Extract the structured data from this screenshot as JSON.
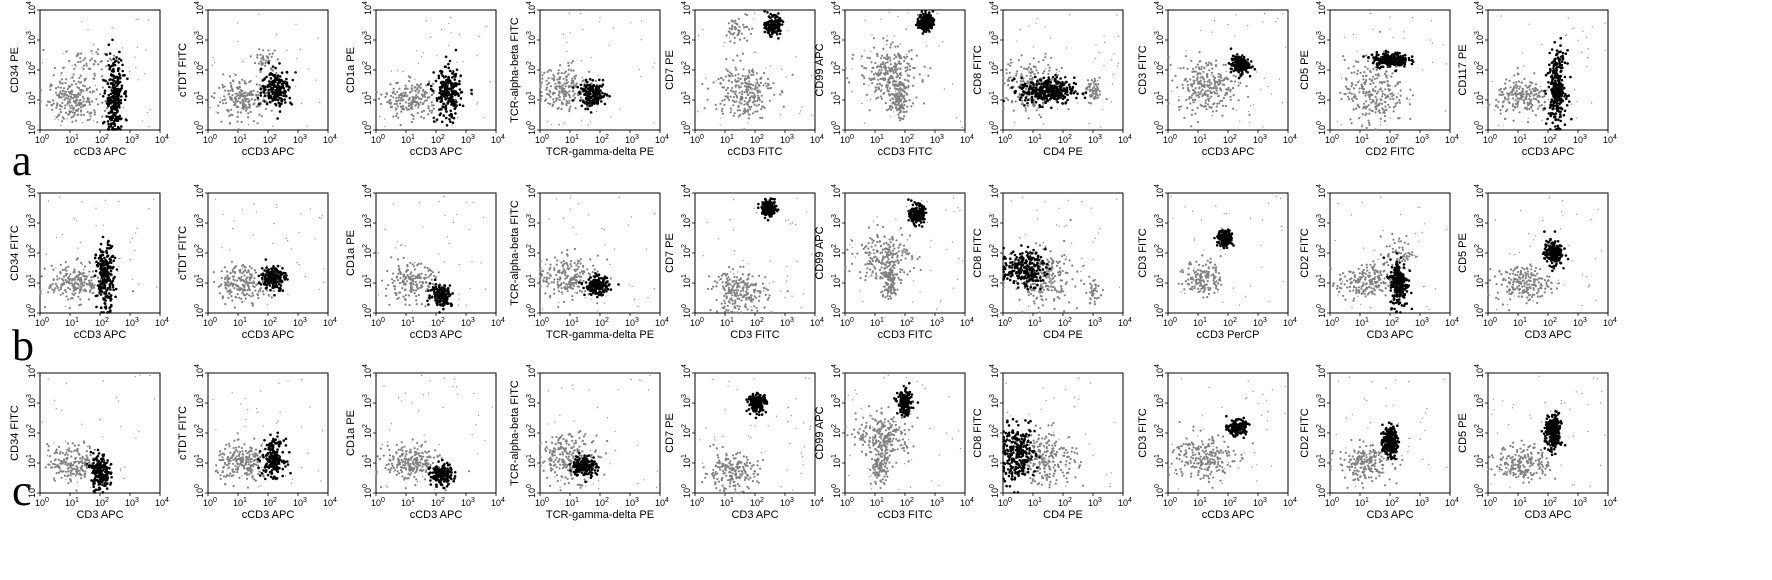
{
  "figure": {
    "rows": [
      {
        "label": "a",
        "plots": [
          {
            "xlabel": "cCD3 APC",
            "ylabel": "CD34 PE"
          },
          {
            "xlabel": "cCD3 APC",
            "ylabel": "cTDT FITC"
          },
          {
            "xlabel": "cCD3 APC",
            "ylabel": "CD1a PE"
          },
          {
            "xlabel": "TCR-gamma-delta PE",
            "ylabel": "TCR-alpha-beta FITC"
          },
          {
            "xlabel": "cCD3 FITC",
            "ylabel": "CD7 PE"
          },
          {
            "xlabel": "cCD3 FITC",
            "ylabel": "CD99 APC"
          },
          {
            "xlabel": "CD4 PE",
            "ylabel": "CD8 FITC"
          },
          {
            "xlabel": "cCD3 APC",
            "ylabel": "CD3 FITC"
          },
          {
            "xlabel": "CD2 FITC",
            "ylabel": "CD5 PE"
          },
          {
            "xlabel": "cCD3 APC",
            "ylabel": "CD117 PE"
          }
        ]
      },
      {
        "label": "b",
        "plots": [
          {
            "xlabel": "cCD3 APC",
            "ylabel": "CD34 FITC"
          },
          {
            "xlabel": "cCD3 APC",
            "ylabel": "cTDT FITC"
          },
          {
            "xlabel": "cCD3 APC",
            "ylabel": "CD1a PE"
          },
          {
            "xlabel": "TCR-gamma-delta PE",
            "ylabel": "TCR-alpha-beta FITC"
          },
          {
            "xlabel": "CD3 FITC",
            "ylabel": "CD7 PE"
          },
          {
            "xlabel": "cCD3 FITC",
            "ylabel": "CD99 APC"
          },
          {
            "xlabel": "CD4 PE",
            "ylabel": "CD8 FITC"
          },
          {
            "xlabel": "cCD3 PerCP",
            "ylabel": "CD3 FITC"
          },
          {
            "xlabel": "CD3 APC",
            "ylabel": "CD2 FITC"
          },
          {
            "xlabel": "CD3 APC",
            "ylabel": "CD5 PE"
          }
        ]
      },
      {
        "label": "c",
        "plots": [
          {
            "xlabel": "CD3 APC",
            "ylabel": "CD34 FITC"
          },
          {
            "xlabel": "cCD3 APC",
            "ylabel": "cTDT FITC"
          },
          {
            "xlabel": "cCD3 APC",
            "ylabel": "CD1a PE"
          },
          {
            "xlabel": "TCR-gamma-delta PE",
            "ylabel": "TCR-alpha-beta FITC"
          },
          {
            "xlabel": "CD3 APC",
            "ylabel": "CD7 PE"
          },
          {
            "xlabel": "cCD3 FITC",
            "ylabel": "CD99 APC"
          },
          {
            "xlabel": "CD4 PE",
            "ylabel": "CD8 FITC"
          },
          {
            "xlabel": "cCD3 APC",
            "ylabel": "CD3 FITC"
          },
          {
            "xlabel": "CD3 APC",
            "ylabel": "CD2 FITC"
          },
          {
            "xlabel": "CD3 APC",
            "ylabel": "CD5 PE"
          }
        ]
      }
    ]
  },
  "chart_data": {
    "type": "scatter",
    "x_scale": "log",
    "y_scale": "log",
    "xlim": [
      1,
      10000
    ],
    "ylim": [
      1,
      10000
    ],
    "tick_base": "10",
    "tick_exponents": [
      "0",
      "1",
      "2",
      "3",
      "4"
    ],
    "grid": false,
    "colors": {
      "background_events": "#808080",
      "gated_events": "#000000"
    },
    "rows": [
      [
        {
          "clusters": [
            {
              "group": "background",
              "cx": 15,
              "cy": 10,
              "sx": 0.45,
              "sy": 0.35,
              "n": 220
            },
            {
              "group": "background",
              "cx": 30,
              "cy": 150,
              "sx": 0.5,
              "sy": 0.3,
              "n": 60
            },
            {
              "group": "gated",
              "cx": 300,
              "cy": 12,
              "sx": 0.15,
              "sy": 0.65,
              "n": 260
            }
          ]
        },
        {
          "clusters": [
            {
              "group": "background",
              "cx": 15,
              "cy": 10,
              "sx": 0.45,
              "sy": 0.3,
              "n": 200
            },
            {
              "group": "gated",
              "cx": 200,
              "cy": 25,
              "sx": 0.25,
              "sy": 0.3,
              "n": 200
            },
            {
              "group": "background",
              "cx": 80,
              "cy": 200,
              "sx": 0.2,
              "sy": 0.2,
              "n": 40
            }
          ]
        },
        {
          "clusters": [
            {
              "group": "background",
              "cx": 15,
              "cy": 10,
              "sx": 0.45,
              "sy": 0.3,
              "n": 200
            },
            {
              "group": "gated",
              "cx": 250,
              "cy": 15,
              "sx": 0.22,
              "sy": 0.45,
              "n": 220
            }
          ]
        },
        {
          "clusters": [
            {
              "group": "background",
              "cx": 8,
              "cy": 25,
              "sx": 0.5,
              "sy": 0.35,
              "n": 200
            },
            {
              "group": "gated",
              "cx": 60,
              "cy": 15,
              "sx": 0.22,
              "sy": 0.2,
              "n": 160
            }
          ]
        },
        {
          "clusters": [
            {
              "group": "background",
              "cx": 40,
              "cy": 20,
              "sx": 0.5,
              "sy": 0.45,
              "n": 240
            },
            {
              "group": "background",
              "cx": 30,
              "cy": 2000,
              "sx": 0.2,
              "sy": 0.3,
              "n": 50
            },
            {
              "group": "gated",
              "cx": 400,
              "cy": 3000,
              "sx": 0.12,
              "sy": 0.15,
              "n": 180
            }
          ]
        },
        {
          "clusters": [
            {
              "group": "background",
              "cx": 30,
              "cy": 80,
              "sx": 0.5,
              "sy": 0.45,
              "n": 250
            },
            {
              "group": "background",
              "cx": 60,
              "cy": 10,
              "sx": 0.15,
              "sy": 0.3,
              "n": 120
            },
            {
              "group": "gated",
              "cx": 500,
              "cy": 4000,
              "sx": 0.12,
              "sy": 0.15,
              "n": 200
            }
          ]
        },
        {
          "clusters": [
            {
              "group": "background",
              "cx": 10,
              "cy": 30,
              "sx": 0.5,
              "sy": 0.45,
              "n": 200
            },
            {
              "group": "background",
              "cx": 1000,
              "cy": 20,
              "sx": 0.15,
              "sy": 0.2,
              "n": 60
            },
            {
              "group": "gated",
              "cx": 30,
              "cy": 20,
              "sx": 0.45,
              "sy": 0.22,
              "n": 320
            }
          ]
        },
        {
          "clusters": [
            {
              "group": "background",
              "cx": 20,
              "cy": 30,
              "sx": 0.5,
              "sy": 0.45,
              "n": 260
            },
            {
              "group": "gated",
              "cx": 250,
              "cy": 150,
              "sx": 0.15,
              "sy": 0.15,
              "n": 180
            }
          ]
        },
        {
          "clusters": [
            {
              "group": "background",
              "cx": 30,
              "cy": 20,
              "sx": 0.5,
              "sy": 0.55,
              "n": 250
            },
            {
              "group": "gated",
              "cx": 100,
              "cy": 220,
              "sx": 0.3,
              "sy": 0.12,
              "n": 220
            }
          ]
        },
        {
          "clusters": [
            {
              "group": "background",
              "cx": 15,
              "cy": 12,
              "sx": 0.45,
              "sy": 0.3,
              "n": 200
            },
            {
              "group": "gated",
              "cx": 200,
              "cy": 25,
              "sx": 0.15,
              "sy": 0.6,
              "n": 280
            }
          ]
        }
      ],
      [
        {
          "clusters": [
            {
              "group": "background",
              "cx": 15,
              "cy": 10,
              "sx": 0.45,
              "sy": 0.3,
              "n": 200
            },
            {
              "group": "gated",
              "cx": 150,
              "cy": 15,
              "sx": 0.15,
              "sy": 0.55,
              "n": 220
            }
          ]
        },
        {
          "clusters": [
            {
              "group": "background",
              "cx": 15,
              "cy": 10,
              "sx": 0.45,
              "sy": 0.3,
              "n": 200
            },
            {
              "group": "gated",
              "cx": 150,
              "cy": 15,
              "sx": 0.2,
              "sy": 0.2,
              "n": 180
            }
          ]
        },
        {
          "clusters": [
            {
              "group": "background",
              "cx": 15,
              "cy": 10,
              "sx": 0.45,
              "sy": 0.3,
              "n": 180
            },
            {
              "group": "gated",
              "cx": 150,
              "cy": 4,
              "sx": 0.18,
              "sy": 0.18,
              "n": 160
            }
          ]
        },
        {
          "clusters": [
            {
              "group": "background",
              "cx": 10,
              "cy": 15,
              "sx": 0.5,
              "sy": 0.35,
              "n": 200
            },
            {
              "group": "gated",
              "cx": 80,
              "cy": 8,
              "sx": 0.2,
              "sy": 0.15,
              "n": 180
            }
          ]
        },
        {
          "clusters": [
            {
              "group": "background",
              "cx": 30,
              "cy": 5,
              "sx": 0.45,
              "sy": 0.35,
              "n": 220
            },
            {
              "group": "gated",
              "cx": 300,
              "cy": 3000,
              "sx": 0.12,
              "sy": 0.13,
              "n": 180
            }
          ]
        },
        {
          "clusters": [
            {
              "group": "background",
              "cx": 20,
              "cy": 80,
              "sx": 0.45,
              "sy": 0.4,
              "n": 220
            },
            {
              "group": "background",
              "cx": 30,
              "cy": 10,
              "sx": 0.15,
              "sy": 0.3,
              "n": 100
            },
            {
              "group": "gated",
              "cx": 250,
              "cy": 2000,
              "sx": 0.12,
              "sy": 0.15,
              "n": 180
            }
          ]
        },
        {
          "clusters": [
            {
              "group": "background",
              "cx": 20,
              "cy": 15,
              "sx": 0.5,
              "sy": 0.45,
              "n": 240
            },
            {
              "group": "background",
              "cx": 1000,
              "cy": 5,
              "sx": 0.12,
              "sy": 0.2,
              "n": 40
            },
            {
              "group": "gated",
              "cx": 5,
              "cy": 30,
              "sx": 0.35,
              "sy": 0.3,
              "n": 220
            }
          ]
        },
        {
          "clusters": [
            {
              "group": "background",
              "cx": 15,
              "cy": 15,
              "sx": 0.3,
              "sy": 0.3,
              "n": 150
            },
            {
              "group": "gated",
              "cx": 80,
              "cy": 300,
              "sx": 0.12,
              "sy": 0.13,
              "n": 180
            }
          ]
        },
        {
          "clusters": [
            {
              "group": "background",
              "cx": 15,
              "cy": 10,
              "sx": 0.45,
              "sy": 0.3,
              "n": 200
            },
            {
              "group": "background",
              "cx": 200,
              "cy": 100,
              "sx": 0.25,
              "sy": 0.3,
              "n": 60
            },
            {
              "group": "gated",
              "cx": 200,
              "cy": 10,
              "sx": 0.15,
              "sy": 0.4,
              "n": 220
            }
          ]
        },
        {
          "clusters": [
            {
              "group": "background",
              "cx": 15,
              "cy": 10,
              "sx": 0.45,
              "sy": 0.3,
              "n": 200
            },
            {
              "group": "gated",
              "cx": 150,
              "cy": 100,
              "sx": 0.15,
              "sy": 0.2,
              "n": 200
            }
          ]
        }
      ],
      [
        {
          "clusters": [
            {
              "group": "background",
              "cx": 15,
              "cy": 10,
              "sx": 0.45,
              "sy": 0.3,
              "n": 200
            },
            {
              "group": "gated",
              "cx": 100,
              "cy": 5,
              "sx": 0.15,
              "sy": 0.3,
              "n": 200
            }
          ]
        },
        {
          "clusters": [
            {
              "group": "background",
              "cx": 15,
              "cy": 10,
              "sx": 0.45,
              "sy": 0.3,
              "n": 220
            },
            {
              "group": "gated",
              "cx": 150,
              "cy": 15,
              "sx": 0.18,
              "sy": 0.3,
              "n": 200
            }
          ]
        },
        {
          "clusters": [
            {
              "group": "background",
              "cx": 15,
              "cy": 10,
              "sx": 0.45,
              "sy": 0.3,
              "n": 220
            },
            {
              "group": "gated",
              "cx": 150,
              "cy": 4,
              "sx": 0.18,
              "sy": 0.18,
              "n": 160
            }
          ]
        },
        {
          "clusters": [
            {
              "group": "background",
              "cx": 10,
              "cy": 15,
              "sx": 0.5,
              "sy": 0.4,
              "n": 220
            },
            {
              "group": "gated",
              "cx": 30,
              "cy": 8,
              "sx": 0.2,
              "sy": 0.18,
              "n": 160
            }
          ]
        },
        {
          "clusters": [
            {
              "group": "background",
              "cx": 15,
              "cy": 5,
              "sx": 0.45,
              "sy": 0.3,
              "n": 200
            },
            {
              "group": "gated",
              "cx": 120,
              "cy": 1000,
              "sx": 0.15,
              "sy": 0.15,
              "n": 180
            }
          ]
        },
        {
          "clusters": [
            {
              "group": "background",
              "cx": 20,
              "cy": 80,
              "sx": 0.45,
              "sy": 0.35,
              "n": 220
            },
            {
              "group": "background",
              "cx": 15,
              "cy": 8,
              "sx": 0.15,
              "sy": 0.3,
              "n": 120
            },
            {
              "group": "gated",
              "cx": 100,
              "cy": 1000,
              "sx": 0.12,
              "sy": 0.2,
              "n": 180
            }
          ]
        },
        {
          "clusters": [
            {
              "group": "background",
              "cx": 30,
              "cy": 15,
              "sx": 0.5,
              "sy": 0.45,
              "n": 220
            },
            {
              "group": "gated",
              "cx": 3,
              "cy": 20,
              "sx": 0.3,
              "sy": 0.45,
              "n": 260
            }
          ]
        },
        {
          "clusters": [
            {
              "group": "background",
              "cx": 15,
              "cy": 15,
              "sx": 0.5,
              "sy": 0.4,
              "n": 220
            },
            {
              "group": "gated",
              "cx": 200,
              "cy": 150,
              "sx": 0.15,
              "sy": 0.12,
              "n": 180
            }
          ]
        },
        {
          "clusters": [
            {
              "group": "background",
              "cx": 15,
              "cy": 10,
              "sx": 0.45,
              "sy": 0.3,
              "n": 200
            },
            {
              "group": "gated",
              "cx": 100,
              "cy": 50,
              "sx": 0.12,
              "sy": 0.25,
              "n": 220
            }
          ]
        },
        {
          "clusters": [
            {
              "group": "background",
              "cx": 15,
              "cy": 10,
              "sx": 0.45,
              "sy": 0.3,
              "n": 200
            },
            {
              "group": "gated",
              "cx": 150,
              "cy": 100,
              "sx": 0.13,
              "sy": 0.3,
              "n": 240
            }
          ]
        }
      ]
    ]
  }
}
